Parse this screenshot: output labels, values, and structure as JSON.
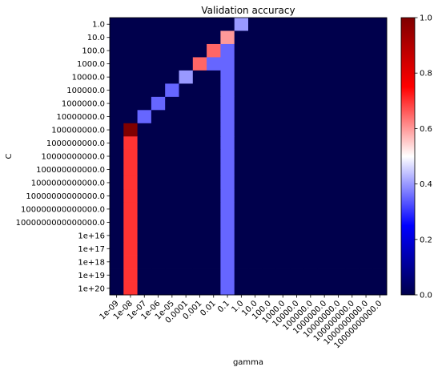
{
  "chart_data": {
    "type": "heatmap",
    "title": "Validation accuracy",
    "xlabel": "gamma",
    "ylabel": "C",
    "colormap": "seismic",
    "x_ticks": [
      "1e-09",
      "1e-08",
      "1e-07",
      "1e-06",
      "1e-05",
      "0.0001",
      "0.001",
      "0.01",
      "0.1",
      "1.0",
      "10.0",
      "100.0",
      "1000.0",
      "10000.0",
      "100000.0",
      "1000000.0",
      "10000000.0",
      "100000000.0",
      "1000000000.0",
      "10000000000.0"
    ],
    "y_ticks": [
      "1.0",
      "10.0",
      "100.0",
      "1000.0",
      "10000.0",
      "100000.0",
      "1000000.0",
      "10000000.0",
      "100000000.0",
      "1000000000.0",
      "10000000000.0",
      "100000000000.0",
      "1000000000000.0",
      "10000000000000.0",
      "100000000000000.0",
      "1000000000000000.0",
      "1e+16",
      "1e+17",
      "1e+18",
      "1e+19",
      "1e+20"
    ],
    "colorbar": {
      "vmin": 0.0,
      "vmax": 1.0,
      "ticks": [
        "0.0",
        "0.2",
        "0.4",
        "0.6",
        "0.8",
        "1.0"
      ]
    },
    "values": [
      [
        0,
        0,
        0,
        0,
        0,
        0,
        0,
        0,
        0,
        0.4,
        0,
        0,
        0,
        0,
        0,
        0,
        0,
        0,
        0,
        0
      ],
      [
        0,
        0,
        0,
        0,
        0,
        0,
        0,
        0,
        0.6,
        0,
        0,
        0,
        0,
        0,
        0,
        0,
        0,
        0,
        0,
        0
      ],
      [
        0,
        0,
        0,
        0,
        0,
        0,
        0,
        0.65,
        0.35,
        0,
        0,
        0,
        0,
        0,
        0,
        0,
        0,
        0,
        0,
        0
      ],
      [
        0,
        0,
        0,
        0,
        0,
        0,
        0.65,
        0.35,
        0.35,
        0,
        0,
        0,
        0,
        0,
        0,
        0,
        0,
        0,
        0,
        0
      ],
      [
        0,
        0,
        0,
        0,
        0,
        0.4,
        0,
        0,
        0.35,
        0,
        0,
        0,
        0,
        0,
        0,
        0,
        0,
        0,
        0,
        0
      ],
      [
        0,
        0,
        0,
        0,
        0.35,
        0,
        0,
        0,
        0.35,
        0,
        0,
        0,
        0,
        0,
        0,
        0,
        0,
        0,
        0,
        0
      ],
      [
        0,
        0,
        0,
        0.35,
        0,
        0,
        0,
        0,
        0.35,
        0,
        0,
        0,
        0,
        0,
        0,
        0,
        0,
        0,
        0,
        0
      ],
      [
        0,
        0,
        0.35,
        0,
        0,
        0,
        0,
        0,
        0.35,
        0,
        0,
        0,
        0,
        0,
        0,
        0,
        0,
        0,
        0,
        0
      ],
      [
        0,
        1.0,
        0,
        0,
        0,
        0,
        0,
        0,
        0.35,
        0,
        0,
        0,
        0,
        0,
        0,
        0,
        0,
        0,
        0,
        0
      ],
      [
        0,
        0.7,
        0,
        0,
        0,
        0,
        0,
        0,
        0.35,
        0,
        0,
        0,
        0,
        0,
        0,
        0,
        0,
        0,
        0,
        0
      ],
      [
        0,
        0.7,
        0,
        0,
        0,
        0,
        0,
        0,
        0.35,
        0,
        0,
        0,
        0,
        0,
        0,
        0,
        0,
        0,
        0,
        0
      ],
      [
        0,
        0.7,
        0,
        0,
        0,
        0,
        0,
        0,
        0.35,
        0,
        0,
        0,
        0,
        0,
        0,
        0,
        0,
        0,
        0,
        0
      ],
      [
        0,
        0.7,
        0,
        0,
        0,
        0,
        0,
        0,
        0.35,
        0,
        0,
        0,
        0,
        0,
        0,
        0,
        0,
        0,
        0,
        0
      ],
      [
        0,
        0.7,
        0,
        0,
        0,
        0,
        0,
        0,
        0.35,
        0,
        0,
        0,
        0,
        0,
        0,
        0,
        0,
        0,
        0,
        0
      ],
      [
        0,
        0.7,
        0,
        0,
        0,
        0,
        0,
        0,
        0.35,
        0,
        0,
        0,
        0,
        0,
        0,
        0,
        0,
        0,
        0,
        0
      ],
      [
        0,
        0.7,
        0,
        0,
        0,
        0,
        0,
        0,
        0.35,
        0,
        0,
        0,
        0,
        0,
        0,
        0,
        0,
        0,
        0,
        0
      ],
      [
        0,
        0.7,
        0,
        0,
        0,
        0,
        0,
        0,
        0.35,
        0,
        0,
        0,
        0,
        0,
        0,
        0,
        0,
        0,
        0,
        0
      ],
      [
        0,
        0.7,
        0,
        0,
        0,
        0,
        0,
        0,
        0.35,
        0,
        0,
        0,
        0,
        0,
        0,
        0,
        0,
        0,
        0,
        0
      ],
      [
        0,
        0.7,
        0,
        0,
        0,
        0,
        0,
        0,
        0.35,
        0,
        0,
        0,
        0,
        0,
        0,
        0,
        0,
        0,
        0,
        0
      ],
      [
        0,
        0.7,
        0,
        0,
        0,
        0,
        0,
        0,
        0.35,
        0,
        0,
        0,
        0,
        0,
        0,
        0,
        0,
        0,
        0,
        0
      ],
      [
        0,
        0.7,
        0,
        0,
        0,
        0,
        0,
        0,
        0.35,
        0,
        0,
        0,
        0,
        0,
        0,
        0,
        0,
        0,
        0,
        0
      ]
    ]
  }
}
